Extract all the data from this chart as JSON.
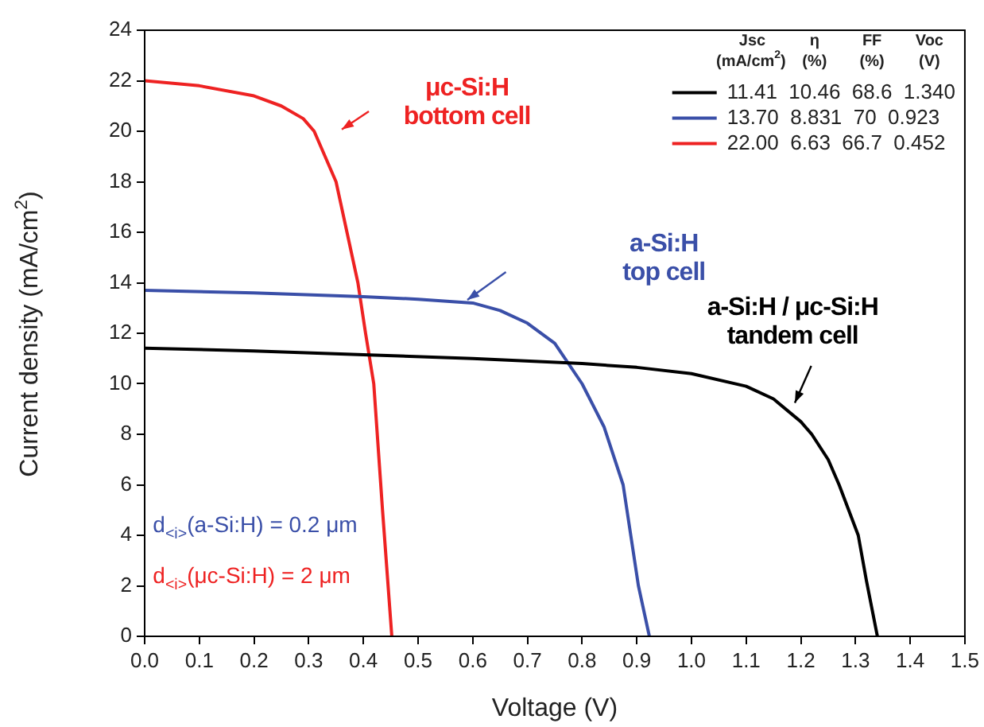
{
  "chart_data": {
    "type": "line",
    "xlabel": "Voltage (V)",
    "ylabel": "Current density (mA/cm$^{2}$)",
    "legend_title": "Jsc (mA/cm$^{2}$)  η (%)  FF (%)  Voc (V)",
    "series": [
      {
        "name": "11.41  10.46  68.6  1.340",
        "color": "#000000",
        "x": [
          0,
          0.2,
          0.4,
          0.6,
          0.8,
          0.9,
          1.0,
          1.1,
          1.15,
          1.2,
          1.22,
          1.25,
          1.27,
          1.305,
          1.32,
          1.34
        ],
        "values": [
          11.41,
          11.3,
          11.15,
          11.0,
          10.8,
          10.65,
          10.4,
          9.9,
          9.4,
          8.5,
          8.0,
          7.0,
          6.0,
          4.0,
          2.2,
          0
        ]
      },
      {
        "name": "13.70  8.831  70  0.923",
        "color": "#3a4fa8",
        "x": [
          0,
          0.2,
          0.4,
          0.5,
          0.6,
          0.65,
          0.7,
          0.75,
          0.8,
          0.84,
          0.875,
          0.903,
          0.923
        ],
        "values": [
          13.7,
          13.6,
          13.45,
          13.35,
          13.2,
          12.9,
          12.4,
          11.6,
          10.0,
          8.3,
          6.0,
          2.0,
          0
        ]
      },
      {
        "name": "22.00  6.63  66.7  0.452",
        "color": "#ee2222",
        "x": [
          0,
          0.1,
          0.2,
          0.25,
          0.29,
          0.31,
          0.33,
          0.35,
          0.37,
          0.39,
          0.404,
          0.419,
          0.435,
          0.452
        ],
        "values": [
          22.0,
          21.8,
          21.4,
          21.0,
          20.5,
          20.0,
          19.0,
          18.0,
          16.0,
          14.0,
          12.0,
          10.0,
          5.0,
          0
        ]
      }
    ],
    "annotations": [
      "μc-Si:H\nbottom cell",
      "a-Si:H\ntop cell",
      "a-Si:H / μc-Si:H\ntandem cell",
      "d$_{<i>}$(a-Si:H) = 0.2 μm",
      "d$_{<i>}$(μc-Si:H) = 2 μm"
    ],
    "xlim": [
      0,
      1.5
    ],
    "xticks": [
      {
        "value": 0,
        "label": "0.0"
      },
      {
        "value": 0.1,
        "label": "0.1"
      },
      {
        "value": 0.2,
        "label": "0.2"
      },
      {
        "value": 0.3,
        "label": "0.3"
      },
      {
        "value": 0.4,
        "label": "0.4"
      },
      {
        "value": 0.5,
        "label": "0.5"
      },
      {
        "value": 0.6,
        "label": "0.6"
      },
      {
        "value": 0.7,
        "label": "0.7"
      },
      {
        "value": 0.8,
        "label": "0.8"
      },
      {
        "value": 0.9,
        "label": "0.9"
      },
      {
        "value": 1,
        "label": "1.0"
      },
      {
        "value": 1.1,
        "label": "1.1"
      },
      {
        "value": 1.2,
        "label": "1.2"
      },
      {
        "value": 1.3,
        "label": "1.3"
      },
      {
        "value": 1.4,
        "label": "1.4"
      },
      {
        "value": 1.5,
        "label": "1.5"
      }
    ],
    "ylim": [
      0,
      24
    ],
    "yticks": [
      0,
      2,
      4,
      6,
      8,
      10,
      12,
      14,
      16,
      18,
      20,
      22,
      24
    ],
    "grid": false,
    "legend": "top right",
    "marker": "none",
    "line_style": "solid"
  }
}
